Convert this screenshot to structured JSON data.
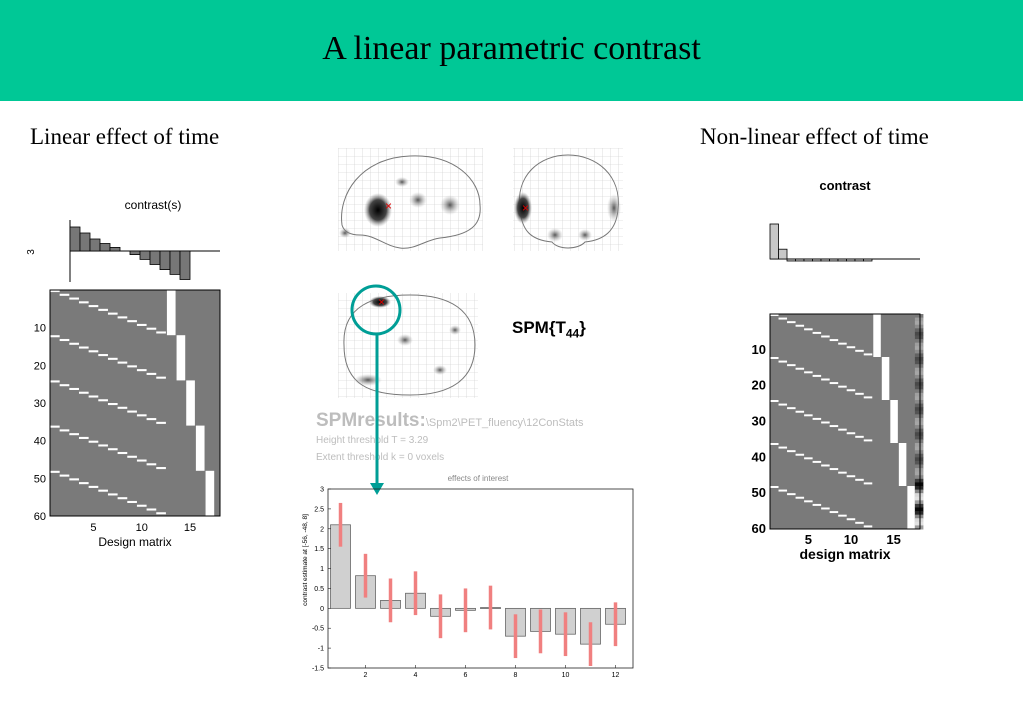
{
  "slide": {
    "title": "A linear parametric contrast",
    "left_label": "Linear effect of time",
    "right_label": "Non-linear effect of time"
  },
  "left_panel": {
    "contrast_title": "contrast(s)",
    "contrast_axis_label": "3",
    "contrast_values": [
      0.8,
      0.6,
      0.4,
      0.25,
      0.12,
      0,
      -0.12,
      -0.28,
      -0.45,
      -0.62,
      -0.78,
      -0.95,
      0,
      0,
      0,
      0,
      0
    ],
    "matrix_row_ticks": [
      "10",
      "20",
      "30",
      "40",
      "50",
      "60"
    ],
    "matrix_col_ticks": [
      "5",
      "10",
      "15"
    ],
    "xlabel": "Design matrix"
  },
  "right_panel": {
    "contrast_title": "contrast",
    "contrast_values": [
      1.0,
      0.28,
      -0.05,
      -0.05,
      -0.05,
      -0.05,
      -0.05,
      -0.05,
      -0.05,
      -0.05,
      -0.05,
      -0.05,
      0,
      0,
      0,
      0,
      0
    ],
    "matrix_row_ticks": [
      "10",
      "20",
      "30",
      "40",
      "50",
      "60"
    ],
    "matrix_col_ticks": [
      "5",
      "10",
      "15"
    ],
    "xlabel": "design matrix"
  },
  "spm": {
    "stat_label": "SPM{T",
    "stat_sub": "44",
    "stat_close": "}",
    "results_title": "SPMresults:",
    "results_path": "\\Spm2\\PET_fluency\\12ConStats",
    "height_threshold": "Height threshold T = 3.29",
    "extent_threshold": "Extent threshold k = 0 voxels",
    "plot_title": "effects of interest"
  },
  "colors": {
    "banner": "#00c896",
    "arrow": "#009e96",
    "error_bar": "#f08080",
    "bar_fill": "#d0d0d0"
  },
  "chart_data": {
    "type": "bar",
    "title": "effects of interest",
    "ylabel": "contrast estimate at [-56, -48, 8]",
    "x": [
      1,
      2,
      3,
      4,
      5,
      6,
      7,
      8,
      9,
      10,
      11,
      12
    ],
    "x_ticks": [
      2,
      4,
      6,
      8,
      10,
      12
    ],
    "y_ticks": [
      "-1.5",
      "-1",
      "-0.5",
      "0",
      "0.5",
      "1",
      "1.5",
      "2",
      "2.5",
      "3"
    ],
    "ylim": [
      -1.5,
      3
    ],
    "values": [
      2.1,
      0.82,
      0.2,
      0.38,
      -0.2,
      -0.05,
      0.02,
      -0.7,
      -0.58,
      -0.65,
      -0.9,
      -0.4
    ],
    "errors": [
      0.55,
      0.55,
      0.55,
      0.55,
      0.55,
      0.55,
      0.55,
      0.55,
      0.55,
      0.55,
      0.55,
      0.55
    ]
  }
}
